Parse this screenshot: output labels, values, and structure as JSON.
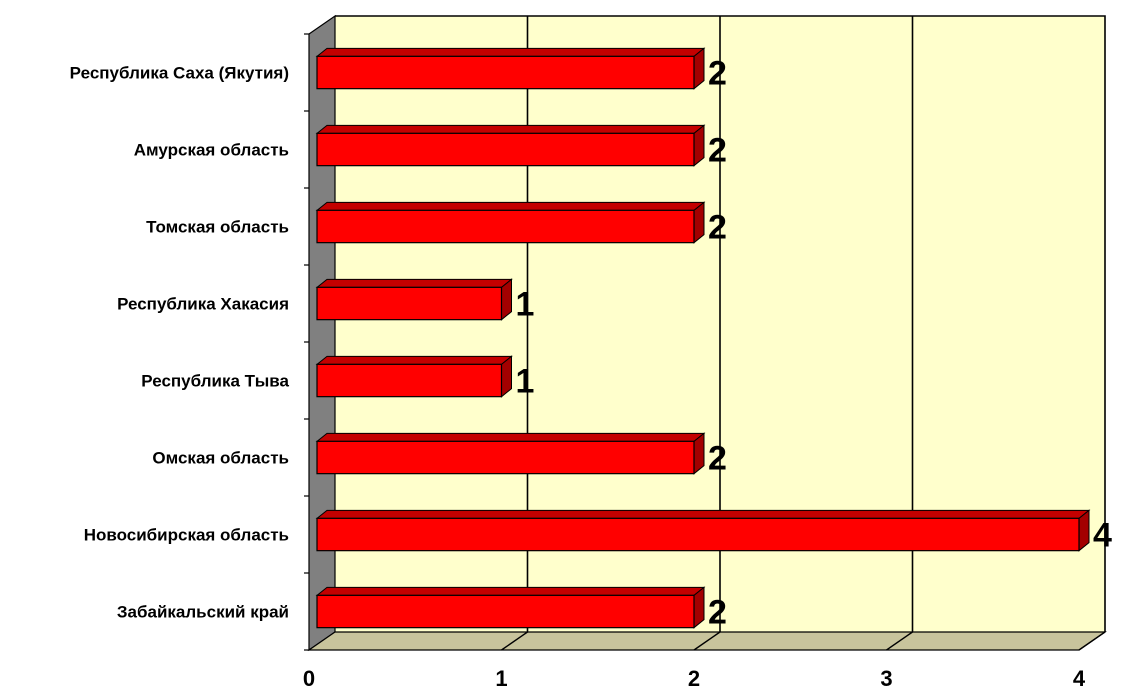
{
  "chart_data": {
    "type": "bar",
    "orientation": "horizontal",
    "style": "3d",
    "categories": [
      "Республика Саха (Якутия)",
      "Амурская область",
      "Томская область",
      "Республика Хакасия",
      "Республика Тыва",
      "Омская область",
      "Новосибирская область",
      "Забайкальский край"
    ],
    "values": [
      2,
      2,
      2,
      1,
      1,
      2,
      4,
      2
    ],
    "xlim": [
      0,
      4
    ],
    "x_ticks": [
      "0",
      "1",
      "2",
      "3",
      "4"
    ],
    "grid": "vertical",
    "legend": "none",
    "title": "",
    "xlabel": "",
    "ylabel": "",
    "colors": {
      "bar_front": "#ff0000",
      "bar_top": "#c40000",
      "bar_side": "#a30000",
      "plot_background": "#ffffcc",
      "floor": "#c8c49c",
      "side_wall": "#808080"
    }
  }
}
